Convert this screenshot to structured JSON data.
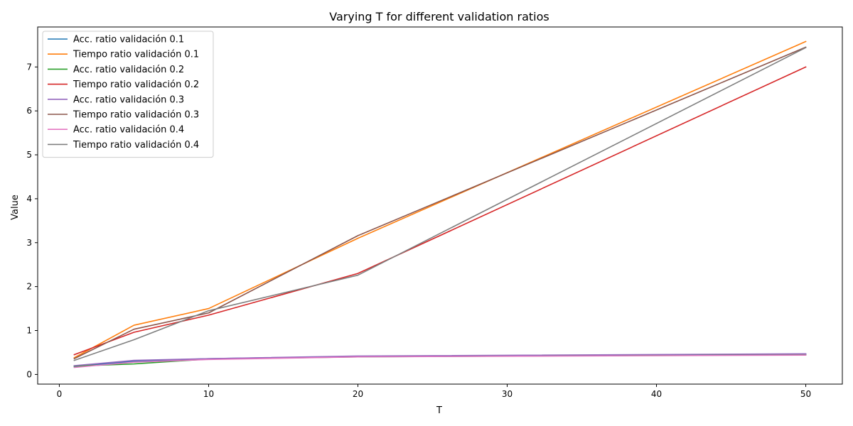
{
  "chart_data": {
    "type": "line",
    "title": "Varying T for different validation ratios",
    "xlabel": "T",
    "ylabel": "Value",
    "xlim": [
      -1.45,
      52.45
    ],
    "ylim": [
      -0.22,
      7.91
    ],
    "xticks": [
      0,
      10,
      20,
      30,
      40,
      50
    ],
    "yticks": [
      0,
      1,
      2,
      3,
      4,
      5,
      6,
      7
    ],
    "grid": false,
    "legend_position": "upper left",
    "series": [
      {
        "name": "Acc. ratio validación 0.1",
        "color": "#1f77b4",
        "x": [
          1,
          5,
          10,
          20,
          50
        ],
        "y": [
          0.18,
          0.3,
          0.36,
          0.41,
          0.46
        ]
      },
      {
        "name": "Tiempo ratio validación 0.1",
        "color": "#ff7f0e",
        "x": [
          1,
          5,
          10,
          20,
          50
        ],
        "y": [
          0.38,
          1.12,
          1.5,
          3.1,
          7.58
        ]
      },
      {
        "name": "Acc. ratio validación 0.2",
        "color": "#2ca02c",
        "x": [
          1,
          5,
          10,
          20,
          50
        ],
        "y": [
          0.19,
          0.24,
          0.35,
          0.4,
          0.45
        ]
      },
      {
        "name": "Tiempo ratio validación 0.2",
        "color": "#d62728",
        "x": [
          1,
          5,
          10,
          20,
          50
        ],
        "y": [
          0.45,
          0.96,
          1.35,
          2.3,
          7.0
        ]
      },
      {
        "name": "Acc. ratio validación 0.3",
        "color": "#9467bd",
        "x": [
          1,
          5,
          10,
          20,
          50
        ],
        "y": [
          0.2,
          0.32,
          0.36,
          0.42,
          0.47
        ]
      },
      {
        "name": "Tiempo ratio validación 0.3",
        "color": "#8c564b",
        "x": [
          1,
          5,
          10,
          20,
          50
        ],
        "y": [
          0.36,
          1.03,
          1.4,
          3.16,
          7.45
        ]
      },
      {
        "name": "Acc. ratio validación 0.4",
        "color": "#e377c2",
        "x": [
          1,
          5,
          10,
          20,
          50
        ],
        "y": [
          0.16,
          0.28,
          0.34,
          0.4,
          0.44
        ]
      },
      {
        "name": "Tiempo ratio validación 0.4",
        "color": "#7f7f7f",
        "x": [
          1,
          5,
          10,
          20,
          50
        ],
        "y": [
          0.32,
          0.79,
          1.45,
          2.26,
          7.44
        ]
      }
    ]
  }
}
